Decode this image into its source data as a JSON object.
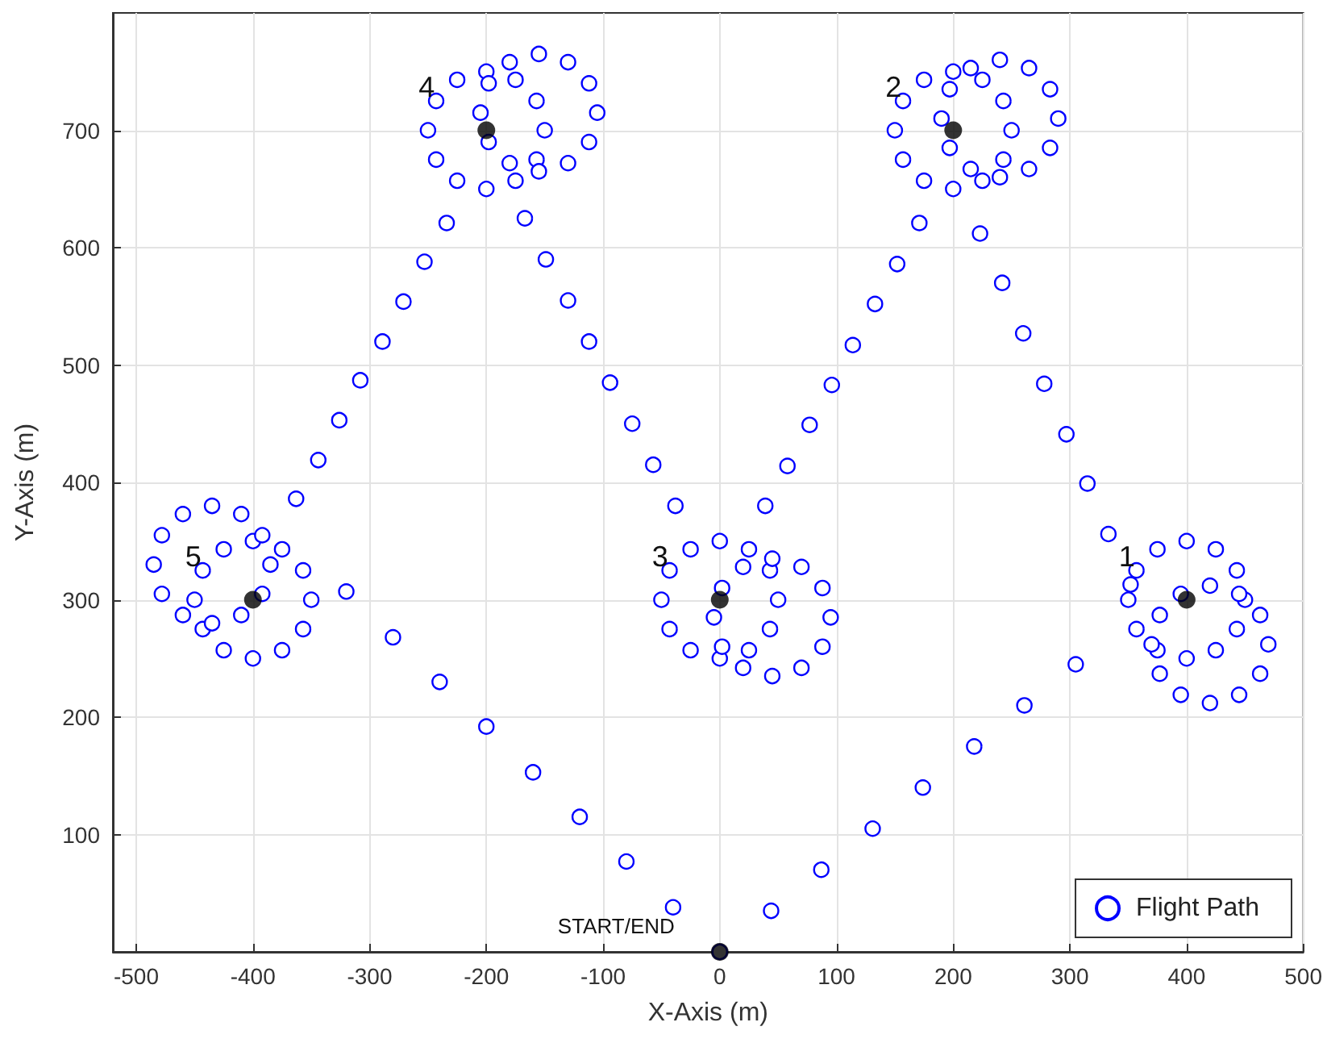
{
  "chart_data": {
    "type": "scatter",
    "xlabel": "X-Axis (m)",
    "ylabel": "Y-Axis (m)",
    "xlim": [
      -520,
      500
    ],
    "xticks": [
      -500,
      -400,
      -300,
      -200,
      -100,
      0,
      100,
      200,
      300,
      400,
      500
    ],
    "ylim": [
      0,
      800
    ],
    "yticks": [
      100,
      200,
      300,
      400,
      500,
      600,
      700
    ],
    "grid": true,
    "legend": "bottom right",
    "marker": "circle",
    "annotations": [
      {
        "text": "1",
        "x": 400,
        "y": 300
      },
      {
        "text": "2",
        "x": 200,
        "y": 700
      },
      {
        "text": "3",
        "x": 0,
        "y": 300
      },
      {
        "text": "4",
        "x": -200,
        "y": 700
      },
      {
        "text": "5",
        "x": -400,
        "y": 300
      },
      {
        "text": "START/END",
        "x": 0,
        "y": 0
      }
    ],
    "series": [
      {
        "name": "Flight Path",
        "color": "#0000ff",
        "x": [
          0,
          44,
          87,
          131,
          174,
          218,
          261,
          305,
          450,
          443,
          425,
          400,
          375,
          357,
          350,
          357,
          375,
          400,
          425,
          443,
          470,
          463,
          445,
          420,
          395,
          377,
          370,
          377,
          395,
          420,
          445,
          463,
          352,
          333,
          315,
          297,
          278,
          260,
          242,
          223,
          250,
          243,
          225,
          200,
          175,
          157,
          150,
          157,
          175,
          200,
          225,
          243,
          290,
          283,
          265,
          240,
          215,
          197,
          190,
          197,
          215,
          240,
          265,
          283,
          171,
          152,
          133,
          114,
          96,
          77,
          58,
          39,
          50,
          43,
          25,
          0,
          -25,
          -43,
          -50,
          -43,
          -25,
          0,
          25,
          43,
          95,
          88,
          70,
          45,
          20,
          2,
          -5,
          2,
          20,
          45,
          70,
          88,
          -38,
          -57,
          -75,
          -94,
          -112,
          -130,
          -149,
          -167,
          -150,
          -157,
          -175,
          -200,
          -225,
          -243,
          -250,
          -243,
          -225,
          -200,
          -175,
          -157,
          -105,
          -112,
          -130,
          -155,
          -180,
          -198,
          -205,
          -198,
          -180,
          -155,
          -130,
          -112,
          -234,
          -253,
          -271,
          -289,
          -308,
          -326,
          -344,
          -363,
          -350,
          -357,
          -375,
          -400,
          -425,
          -443,
          -450,
          -443,
          -425,
          -400,
          -375,
          -357,
          -385,
          -392,
          -410,
          -435,
          -460,
          -478,
          -485,
          -478,
          -460,
          -435,
          -410,
          -392,
          -320,
          -280,
          -240,
          -200,
          -160,
          -120,
          -80,
          -40
        ],
        "values": [
          0,
          35,
          70,
          105,
          140,
          175,
          210,
          245,
          300,
          325,
          343,
          350,
          343,
          325,
          300,
          275,
          257,
          250,
          257,
          275,
          262,
          287,
          305,
          312,
          305,
          287,
          262,
          237,
          219,
          212,
          219,
          237,
          313,
          356,
          399,
          441,
          484,
          527,
          570,
          612,
          700,
          725,
          743,
          750,
          743,
          725,
          700,
          675,
          657,
          650,
          657,
          675,
          710,
          735,
          753,
          760,
          753,
          735,
          710,
          685,
          667,
          660,
          667,
          685,
          621,
          586,
          552,
          517,
          483,
          449,
          414,
          380,
          300,
          325,
          343,
          350,
          343,
          325,
          300,
          275,
          257,
          250,
          257,
          275,
          285,
          310,
          328,
          335,
          328,
          310,
          285,
          260,
          242,
          235,
          242,
          260,
          380,
          415,
          450,
          485,
          520,
          555,
          590,
          625,
          700,
          725,
          743,
          750,
          743,
          725,
          700,
          675,
          657,
          650,
          657,
          675,
          715,
          740,
          758,
          765,
          758,
          740,
          715,
          690,
          672,
          665,
          672,
          690,
          621,
          588,
          554,
          520,
          487,
          453,
          419,
          386,
          300,
          325,
          343,
          350,
          343,
          325,
          300,
          275,
          257,
          250,
          257,
          275,
          330,
          355,
          373,
          380,
          373,
          355,
          330,
          305,
          287,
          280,
          287,
          305,
          307,
          268,
          230,
          192,
          153,
          115,
          77,
          38
        ]
      },
      {
        "color": "#000000",
        "x": [
          0,
          400,
          200,
          0,
          -200,
          -400
        ],
        "values": [
          0,
          300,
          700,
          300,
          700,
          300
        ]
      }
    ]
  }
}
